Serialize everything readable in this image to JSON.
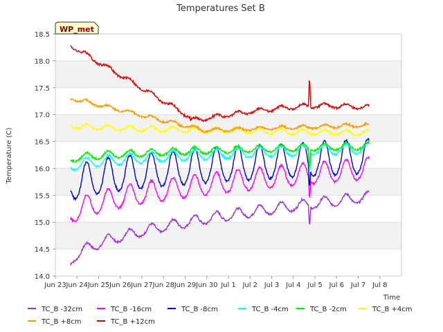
{
  "chart_data": {
    "type": "line",
    "title": "Temperatures Set B",
    "xlabel": "Time",
    "ylabel": "Temperature (C)",
    "badge": "WP_met",
    "x_ticks": [
      "Jun 23",
      "Jun 24",
      "Jun 25",
      "Jun 26",
      "Jun 27",
      "Jun 28",
      "Jun 29",
      "Jun 30",
      "Jul 1",
      "Jul 2",
      "Jul 3",
      "Jul 4",
      "Jul 5",
      "Jul 6",
      "Jul 7",
      "Jul 8"
    ],
    "y_ticks": [
      "14.0",
      "14.5",
      "15.0",
      "15.5",
      "16.0",
      "16.5",
      "17.0",
      "17.5",
      "18.0",
      "18.5"
    ],
    "ylim": [
      14.0,
      18.5
    ],
    "xlim_days": [
      0,
      16
    ],
    "grid": "horizontal alternating bands",
    "legend_position": "bottom",
    "series": [
      {
        "name": "TC_B -32cm",
        "color": "#9b30d9",
        "base_start": 14.2,
        "base_end": 15.45,
        "amp": 0.12,
        "x_start": 0.7,
        "x_end": 14.5
      },
      {
        "name": "TC_B -16cm",
        "color": "#ff00ff",
        "base_start": 15.05,
        "base_end": 15.95,
        "amp": 0.25,
        "x_start": 0.7,
        "x_end": 14.5
      },
      {
        "name": "TC_B -8cm",
        "color": "#0000cc",
        "base_start": 15.6,
        "base_end": 16.15,
        "amp": 0.4,
        "x_start": 0.7,
        "x_end": 14.5
      },
      {
        "name": "TC_B -4cm",
        "color": "#00ffff",
        "base_start": 16.0,
        "base_end": 16.35,
        "amp": 0.12,
        "x_start": 0.7,
        "x_end": 14.5
      },
      {
        "name": "TC_B -2cm",
        "color": "#00ee00",
        "base_start": 16.15,
        "base_end": 16.4,
        "amp": 0.08,
        "x_start": 0.7,
        "x_end": 14.5
      },
      {
        "name": "TC_B +4cm",
        "color": "#ffff00",
        "base_start": 16.8,
        "base_end": 16.65,
        "amp": 0.06,
        "x_start": 0.7,
        "x_end": 14.5
      },
      {
        "name": "TC_B +8cm",
        "color": "#ff9900",
        "base_start": 17.3,
        "base_end": 16.8,
        "amp": 0.04,
        "x_start": 0.7,
        "x_end": 14.5
      },
      {
        "name": "TC_B +12cm",
        "color": "#dd0000",
        "base_start": 18.28,
        "base_end": 17.1,
        "amp": 0.05,
        "x_start": 0.7,
        "x_end": 14.5
      }
    ]
  }
}
